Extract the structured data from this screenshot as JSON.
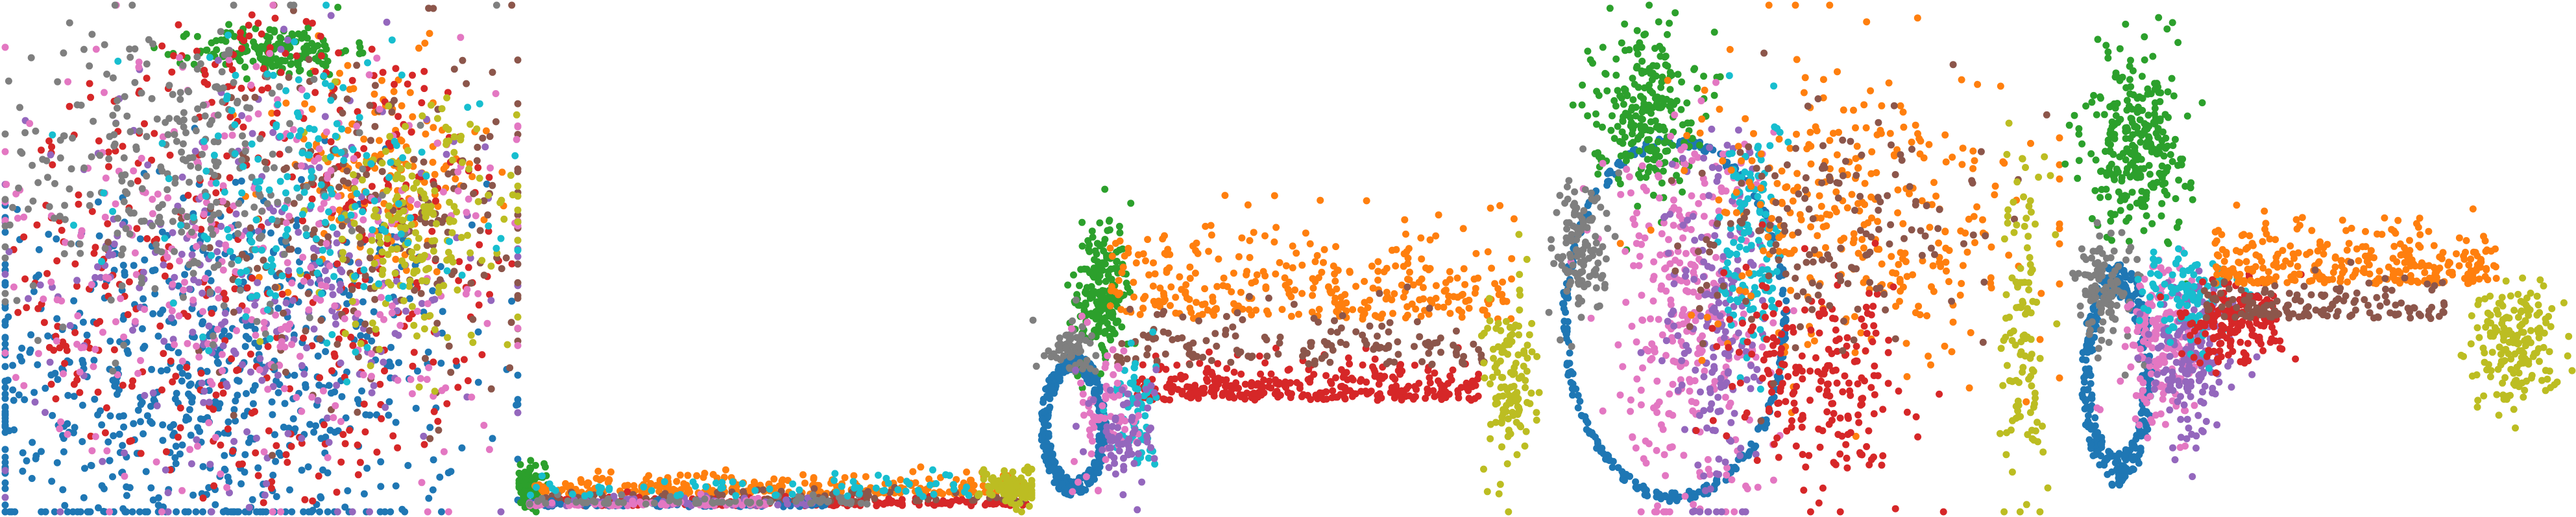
{
  "figure": {
    "background": "#ffffff",
    "panel_count": 5,
    "axes_visible": false,
    "grid": false,
    "legend": "none"
  },
  "palette": {
    "blue": "#1f77b4",
    "orange": "#ff7f0e",
    "green": "#2ca02c",
    "red": "#d62728",
    "purple": "#9467bd",
    "brown": "#8c564b",
    "pink": "#e377c2",
    "gray": "#7f7f7f",
    "olive": "#bcbd22",
    "cyan": "#17becf"
  },
  "chart_data": [
    {
      "type": "scatter",
      "title": "",
      "xlabel": "",
      "ylabel": "",
      "xlim": [
        -1,
        1
      ],
      "ylim": [
        -1,
        1
      ],
      "series": [
        {
          "color": "#1f77b4",
          "count": 700,
          "shape": "gauss",
          "cx": -0.2,
          "cy": -0.5,
          "sx": 0.5,
          "sy": 0.4
        },
        {
          "color": "#ff7f0e",
          "count": 160,
          "shape": "gauss",
          "cx": 0.45,
          "cy": 0.35,
          "sx": 0.22,
          "sy": 0.22
        },
        {
          "color": "#2ca02c",
          "count": 160,
          "shape": "gauss",
          "cx": 0.05,
          "cy": 0.82,
          "sx": 0.15,
          "sy": 0.05
        },
        {
          "color": "#d62728",
          "count": 420,
          "shape": "uniform",
          "cx": 0.0,
          "cy": 0.0,
          "rx": 0.98,
          "ry": 0.98
        },
        {
          "color": "#9467bd",
          "count": 280,
          "shape": "gauss",
          "cx": 0.0,
          "cy": -0.1,
          "sx": 0.45,
          "sy": 0.4
        },
        {
          "color": "#8c564b",
          "count": 220,
          "shape": "gauss",
          "cx": 0.45,
          "cy": 0.15,
          "sx": 0.35,
          "sy": 0.35
        },
        {
          "color": "#e377c2",
          "count": 320,
          "shape": "gauss",
          "cx": 0.0,
          "cy": 0.0,
          "sx": 0.5,
          "sy": 0.45
        },
        {
          "color": "#7f7f7f",
          "count": 300,
          "shape": "gauss",
          "cx": -0.35,
          "cy": 0.35,
          "sx": 0.35,
          "sy": 0.3
        },
        {
          "color": "#bcbd22",
          "count": 200,
          "shape": "gauss",
          "cx": 0.6,
          "cy": 0.1,
          "sx": 0.2,
          "sy": 0.25
        },
        {
          "color": "#17becf",
          "count": 180,
          "shape": "gauss",
          "cx": 0.15,
          "cy": 0.25,
          "sx": 0.35,
          "sy": 0.3
        }
      ]
    },
    {
      "type": "scatter",
      "title": "",
      "xlabel": "",
      "ylabel": "",
      "xlim": [
        0,
        1
      ],
      "ylim": [
        0,
        1
      ],
      "series": [
        {
          "color": "#2ca02c",
          "count": 90,
          "shape": "gauss",
          "cx": 0.02,
          "cy": 0.05,
          "sx": 0.015,
          "sy": 0.02
        },
        {
          "color": "#ff7f0e",
          "count": 260,
          "shape": "band",
          "x0": 0.03,
          "x1": 0.99,
          "cy": 0.035,
          "sy": 0.018
        },
        {
          "color": "#d62728",
          "count": 200,
          "shape": "band",
          "x0": 0.03,
          "x1": 0.99,
          "cy": 0.012,
          "sy": 0.008
        },
        {
          "color": "#8c564b",
          "count": 90,
          "shape": "band",
          "x0": 0.05,
          "x1": 0.99,
          "cy": 0.02,
          "sy": 0.01
        },
        {
          "color": "#1f77b4",
          "count": 70,
          "shape": "band",
          "x0": 0.02,
          "x1": 0.6,
          "cy": 0.01,
          "sy": 0.006
        },
        {
          "color": "#9467bd",
          "count": 70,
          "shape": "band",
          "x0": 0.02,
          "x1": 0.6,
          "cy": 0.012,
          "sy": 0.007
        },
        {
          "color": "#e377c2",
          "count": 60,
          "shape": "band",
          "x0": 0.02,
          "x1": 0.5,
          "cy": 0.012,
          "sy": 0.007
        },
        {
          "color": "#7f7f7f",
          "count": 70,
          "shape": "band",
          "x0": 0.02,
          "x1": 0.7,
          "cy": 0.015,
          "sy": 0.008
        },
        {
          "color": "#bcbd22",
          "count": 90,
          "shape": "gauss",
          "cx": 0.96,
          "cy": 0.05,
          "sx": 0.03,
          "sy": 0.02
        },
        {
          "color": "#17becf",
          "count": 70,
          "shape": "band",
          "x0": 0.02,
          "x1": 0.9,
          "cy": 0.03,
          "sy": 0.02
        }
      ]
    },
    {
      "type": "scatter",
      "title": "",
      "xlabel": "",
      "ylabel": "",
      "xlim": [
        0,
        1
      ],
      "ylim": [
        0,
        1
      ],
      "series": [
        {
          "color": "#1f77b4",
          "count": 320,
          "shape": "ring",
          "cx": 0.08,
          "cy": 0.17,
          "rx": 0.065,
          "ry": 0.14,
          "w": 0.25
        },
        {
          "color": "#2ca02c",
          "count": 200,
          "shape": "gauss",
          "cx": 0.13,
          "cy": 0.43,
          "sx": 0.025,
          "sy": 0.07
        },
        {
          "color": "#7f7f7f",
          "count": 60,
          "shape": "gauss",
          "cx": 0.07,
          "cy": 0.32,
          "sx": 0.025,
          "sy": 0.03
        },
        {
          "color": "#ff7f0e",
          "count": 320,
          "shape": "band",
          "x0": 0.15,
          "x1": 0.94,
          "cy": 0.38,
          "sy": 0.09
        },
        {
          "color": "#d62728",
          "count": 320,
          "shape": "band",
          "x0": 0.2,
          "x1": 0.88,
          "cy": 0.22,
          "sy": 0.035
        },
        {
          "color": "#8c564b",
          "count": 150,
          "shape": "band",
          "x0": 0.15,
          "x1": 0.88,
          "cy": 0.29,
          "sy": 0.05
        },
        {
          "color": "#bcbd22",
          "count": 130,
          "shape": "gauss",
          "cx": 0.93,
          "cy": 0.25,
          "sx": 0.025,
          "sy": 0.09
        },
        {
          "color": "#17becf",
          "count": 70,
          "shape": "gauss",
          "cx": 0.2,
          "cy": 0.2,
          "sx": 0.02,
          "sy": 0.06
        },
        {
          "color": "#e377c2",
          "count": 70,
          "shape": "gauss",
          "cx": 0.15,
          "cy": 0.2,
          "sx": 0.03,
          "sy": 0.08
        },
        {
          "color": "#9467bd",
          "count": 70,
          "shape": "gauss",
          "cx": 0.18,
          "cy": 0.15,
          "sx": 0.03,
          "sy": 0.06
        }
      ]
    },
    {
      "type": "scatter",
      "title": "",
      "xlabel": "",
      "ylabel": "",
      "xlim": [
        0,
        1
      ],
      "ylim": [
        0,
        1
      ],
      "series": [
        {
          "color": "#1f77b4",
          "count": 320,
          "shape": "ring",
          "cx": 0.25,
          "cy": 0.38,
          "rx": 0.22,
          "ry": 0.36,
          "w": 0.05
        },
        {
          "color": "#2ca02c",
          "count": 240,
          "shape": "gauss",
          "cx": 0.19,
          "cy": 0.8,
          "sx": 0.05,
          "sy": 0.08
        },
        {
          "color": "#e377c2",
          "count": 320,
          "shape": "gauss",
          "cx": 0.27,
          "cy": 0.4,
          "sx": 0.08,
          "sy": 0.2
        },
        {
          "color": "#9467bd",
          "count": 180,
          "shape": "gauss",
          "cx": 0.33,
          "cy": 0.35,
          "sx": 0.05,
          "sy": 0.2
        },
        {
          "color": "#17becf",
          "count": 130,
          "shape": "gauss",
          "cx": 0.4,
          "cy": 0.53,
          "sx": 0.03,
          "sy": 0.13
        },
        {
          "color": "#7f7f7f",
          "count": 120,
          "shape": "gauss",
          "cx": 0.07,
          "cy": 0.52,
          "sx": 0.03,
          "sy": 0.07
        },
        {
          "color": "#ff7f0e",
          "count": 320,
          "shape": "gauss",
          "cx": 0.62,
          "cy": 0.58,
          "sx": 0.16,
          "sy": 0.15
        },
        {
          "color": "#d62728",
          "count": 220,
          "shape": "gauss",
          "cx": 0.53,
          "cy": 0.25,
          "sx": 0.09,
          "sy": 0.1
        },
        {
          "color": "#8c564b",
          "count": 160,
          "shape": "gauss",
          "cx": 0.55,
          "cy": 0.55,
          "sx": 0.15,
          "sy": 0.12
        },
        {
          "color": "#bcbd22",
          "count": 120,
          "shape": "gauss",
          "cx": 0.93,
          "cy": 0.35,
          "sx": 0.02,
          "sy": 0.18
        }
      ]
    },
    {
      "type": "scatter",
      "title": "",
      "xlabel": "",
      "ylabel": "",
      "xlim": [
        0,
        1
      ],
      "ylim": [
        0,
        1
      ],
      "series": [
        {
          "color": "#1f77b4",
          "count": 330,
          "shape": "ring",
          "cx": 0.11,
          "cy": 0.27,
          "rx": 0.07,
          "ry": 0.22,
          "w": 0.3
        },
        {
          "color": "#2ca02c",
          "count": 280,
          "shape": "gauss",
          "cx": 0.15,
          "cy": 0.73,
          "sx": 0.05,
          "sy": 0.09
        },
        {
          "color": "#7f7f7f",
          "count": 110,
          "shape": "gauss",
          "cx": 0.09,
          "cy": 0.44,
          "sx": 0.03,
          "sy": 0.06
        },
        {
          "color": "#e377c2",
          "count": 170,
          "shape": "gauss",
          "cx": 0.2,
          "cy": 0.33,
          "sx": 0.04,
          "sy": 0.08
        },
        {
          "color": "#9467bd",
          "count": 170,
          "shape": "gauss",
          "cx": 0.26,
          "cy": 0.3,
          "sx": 0.04,
          "sy": 0.08
        },
        {
          "color": "#17becf",
          "count": 110,
          "shape": "gauss",
          "cx": 0.25,
          "cy": 0.43,
          "sx": 0.05,
          "sy": 0.05
        },
        {
          "color": "#d62728",
          "count": 170,
          "shape": "gauss",
          "cx": 0.33,
          "cy": 0.37,
          "sx": 0.05,
          "sy": 0.04
        },
        {
          "color": "#ff7f0e",
          "count": 300,
          "shape": "band",
          "x0": 0.3,
          "x1": 0.85,
          "cy": 0.45,
          "sy": 0.06
        },
        {
          "color": "#8c564b",
          "count": 150,
          "shape": "band",
          "x0": 0.28,
          "x1": 0.75,
          "cy": 0.38,
          "sy": 0.04
        },
        {
          "color": "#bcbd22",
          "count": 180,
          "shape": "gauss",
          "cx": 0.88,
          "cy": 0.34,
          "sx": 0.04,
          "sy": 0.06
        }
      ]
    }
  ]
}
